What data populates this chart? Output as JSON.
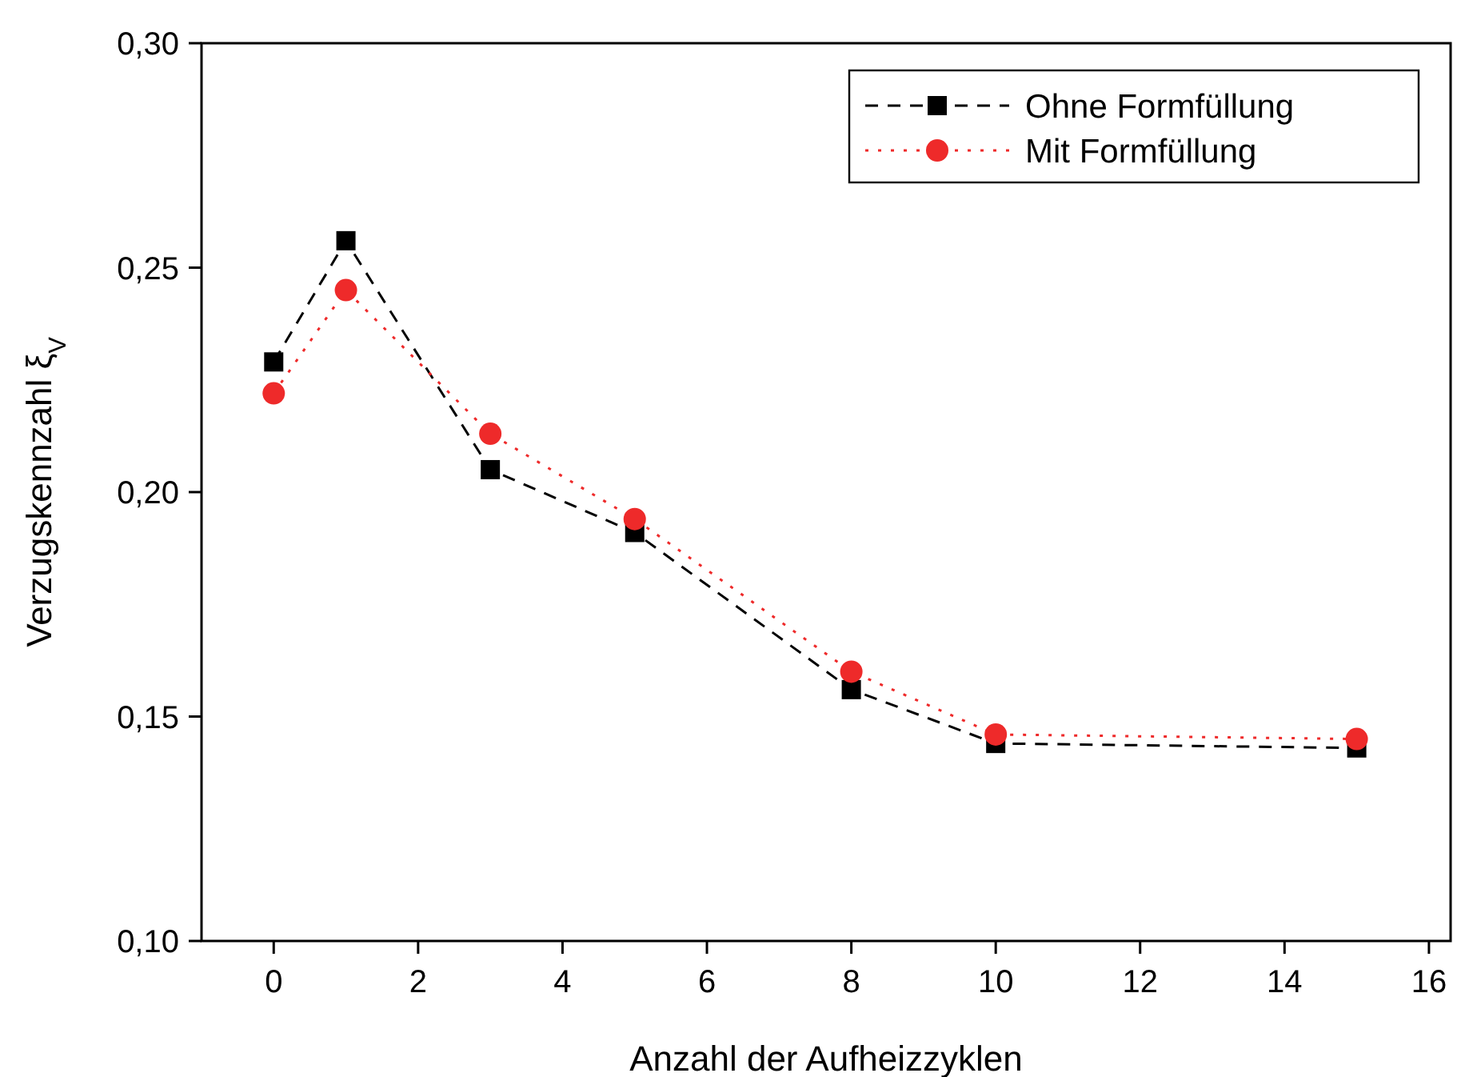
{
  "chart_data": {
    "type": "line",
    "xlabel": "Anzahl der Aufheizzyklen",
    "ylabel": "Verzugskennzahl ξ$_{V}$",
    "x": [
      0,
      1,
      3,
      5,
      8,
      10,
      15
    ],
    "series": [
      {
        "name": "Ohne Formfüllung",
        "color": "#000000",
        "marker": "square",
        "line_style": "dashed",
        "values": [
          0.229,
          0.256,
          0.205,
          0.191,
          0.156,
          0.144,
          0.143
        ]
      },
      {
        "name": "Mit Formfüllung",
        "color": "#ee2a2a",
        "marker": "circle",
        "line_style": "dotted",
        "values": [
          0.222,
          0.245,
          0.213,
          0.194,
          0.16,
          0.146,
          0.145
        ]
      }
    ],
    "xlim": [
      -1,
      16.3
    ],
    "xticks": [
      0,
      2,
      4,
      6,
      8,
      10,
      12,
      14,
      16
    ],
    "ylim": [
      0.1,
      0.3
    ],
    "yticks": [
      {
        "value": 0.1,
        "label": "0,10"
      },
      {
        "value": 0.15,
        "label": "0,15"
      },
      {
        "value": 0.2,
        "label": "0,20"
      },
      {
        "value": 0.25,
        "label": "0,25"
      },
      {
        "value": 0.3,
        "label": "0,30"
      }
    ],
    "legend": "top right",
    "grid": false
  }
}
